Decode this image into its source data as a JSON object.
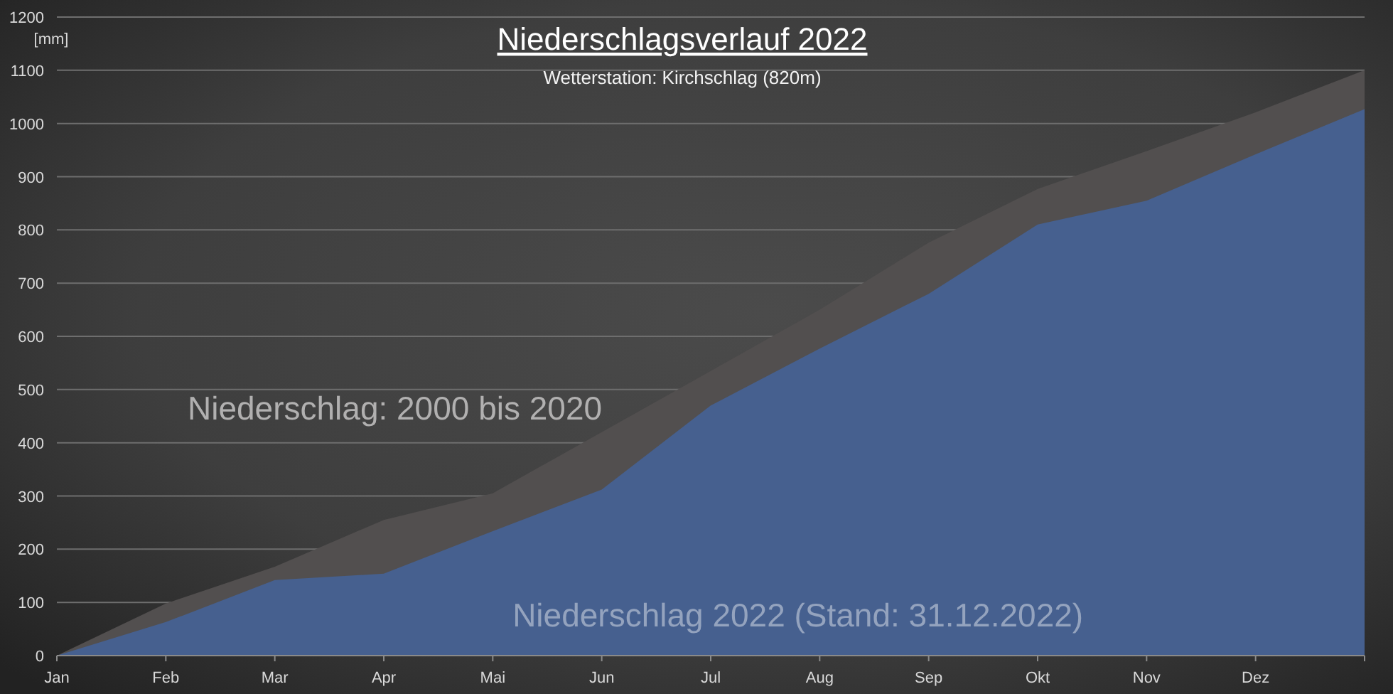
{
  "chart_data": {
    "type": "area",
    "title": "Niederschlagsverlauf 2022",
    "subtitle": "Wetterstation: Kirchschlag (820m)",
    "ylabel": "[mm]",
    "categories": [
      "Jan",
      "Feb",
      "Mar",
      "Apr",
      "Mai",
      "Jun",
      "Jul",
      "Aug",
      "Sep",
      "Okt",
      "Nov",
      "Dez",
      null
    ],
    "series": [
      {
        "name": "Niederschlag: 2000 bis 2020",
        "color": "#524f4f",
        "values": [
          0,
          98,
          167,
          255,
          305,
          420,
          535,
          650,
          776,
          877,
          948,
          1021,
          1100
        ]
      },
      {
        "name": "Niederschlag 2022 (Stand: 31.12.2022)",
        "color": "#46608f",
        "values": [
          0,
          63,
          142,
          154,
          234,
          312,
          470,
          577,
          680,
          810,
          855,
          942,
          1027
        ]
      }
    ],
    "ylim": [
      0,
      1200
    ],
    "yticks": [
      0,
      100,
      200,
      300,
      400,
      500,
      600,
      700,
      800,
      900,
      1000,
      1100,
      1200
    ],
    "grid": "y"
  }
}
